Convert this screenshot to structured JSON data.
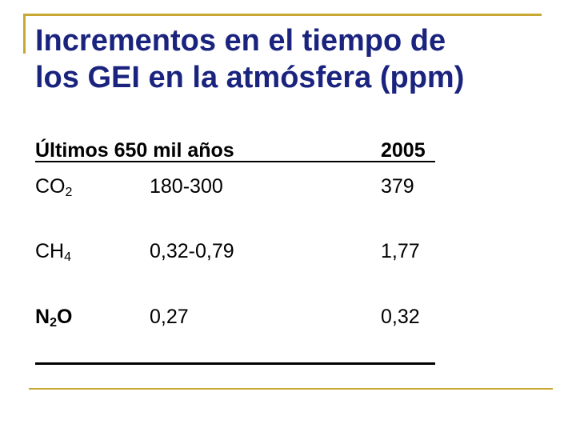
{
  "title": {
    "line1": "Incrementos en el tiempo de",
    "line2": "los GEI en la atmósfera (ppm)"
  },
  "table": {
    "header": {
      "period": "Últimos 650 mil años",
      "year": "2005"
    },
    "rows": [
      {
        "gas_base": "CO",
        "gas_sub": "2",
        "gas_tail": "",
        "range": "180-300",
        "value_2005": "379"
      },
      {
        "gas_base": "CH",
        "gas_sub": "4",
        "gas_tail": "",
        "range": "0,32-0,79",
        "value_2005": "1,77"
      },
      {
        "gas_base": "N",
        "gas_sub": "2",
        "gas_tail": "O",
        "range": "0,27",
        "value_2005": "0,32"
      }
    ]
  },
  "colors": {
    "title": "#1a237e",
    "accent_rule": "#c8a832"
  }
}
